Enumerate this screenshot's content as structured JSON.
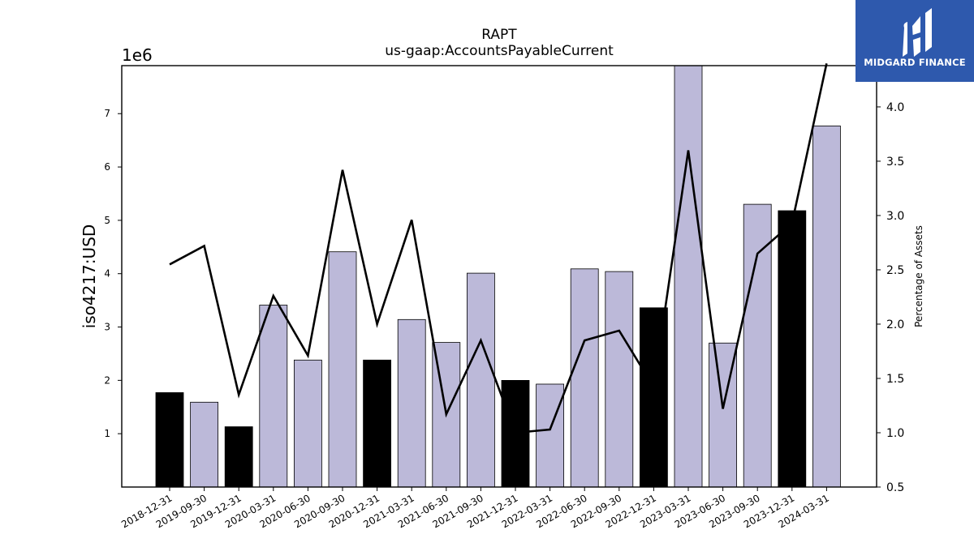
{
  "logo": {
    "name": "MIDGARD FINANCE",
    "icon": "midgard-logo-icon",
    "background": "#2e59ad"
  },
  "chart_data": {
    "type": "bar",
    "title": "RAPT",
    "subtitle": "us-gaap:AccountsPayableCurrent",
    "ylabel": "iso4217:USD",
    "y_multiplier_label": "1e6",
    "y2label": "Percentage of Assets",
    "ylim": [
      0,
      7.9
    ],
    "y2lim": [
      0.5,
      4.38
    ],
    "yticks": [
      1,
      2,
      3,
      4,
      5,
      6,
      7
    ],
    "y2ticks": [
      "0.5",
      "1.0",
      "1.5",
      "2.0",
      "2.5",
      "3.0",
      "3.5",
      "4.0"
    ],
    "categories": [
      "2018-12-31",
      "2019-09-30",
      "2019-12-31",
      "2020-03-31",
      "2020-06-30",
      "2020-09-30",
      "2020-12-31",
      "2021-03-31",
      "2021-06-30",
      "2021-09-30",
      "2021-12-31",
      "2022-03-31",
      "2022-06-30",
      "2022-09-30",
      "2022-12-31",
      "2023-03-31",
      "2023-06-30",
      "2023-09-30",
      "2023-12-31",
      "2024-03-31"
    ],
    "series": [
      {
        "values": [
          1.77,
          1.59,
          1.13,
          3.41,
          2.38,
          4.41,
          2.38,
          3.14,
          2.71,
          4.01,
          2.0,
          1.93,
          4.09,
          4.04,
          3.36,
          7.9,
          2.7,
          5.3,
          5.18,
          6.77
        ],
        "year_end": [
          true,
          false,
          true,
          false,
          false,
          false,
          true,
          false,
          false,
          false,
          true,
          false,
          false,
          false,
          true,
          false,
          false,
          false,
          true,
          false
        ]
      },
      {
        "axis": "right",
        "type": "line",
        "values": [
          2.55,
          2.72,
          1.35,
          2.26,
          1.71,
          3.42,
          2.0,
          2.96,
          1.17,
          1.85,
          1.0,
          1.03,
          1.85,
          1.94,
          1.42,
          3.6,
          1.22,
          2.65,
          2.93,
          4.4
        ]
      }
    ],
    "colors": {
      "bar": "#bcb9d9",
      "bar_year_end": "#000000",
      "line": "#000000"
    }
  }
}
